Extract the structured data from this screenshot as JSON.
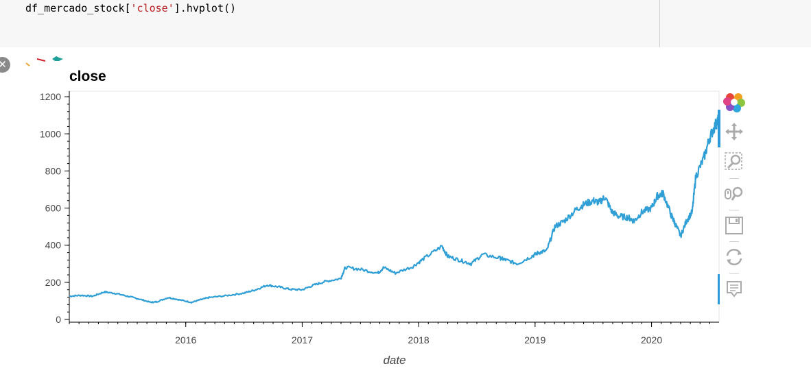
{
  "cell": {
    "code_prefix": "df_mercado_stock[",
    "code_string": "'close'",
    "code_suffix": "].hvplot()"
  },
  "output": {
    "close_button_label": "✕"
  },
  "toolbar": {
    "tools": [
      "bokeh-logo-icon",
      "pan-icon",
      "box-zoom-icon",
      "wheel-zoom-icon",
      "save-icon",
      "reset-icon",
      "hover-icon"
    ],
    "active_color": "#2a9ad8"
  },
  "chart_data": {
    "type": "line",
    "title": "close",
    "xlabel": "date",
    "ylabel": "",
    "color": "#2f9fd6",
    "ylim": [
      0,
      1230
    ],
    "xlim": [
      2015.0,
      2020.58
    ],
    "x_ticks": [
      2016,
      2017,
      2018,
      2019,
      2020
    ],
    "x_tick_labels": [
      "2016",
      "2017",
      "2018",
      "2019",
      "2020"
    ],
    "y_ticks": [
      0,
      200,
      400,
      600,
      800,
      1000,
      1200
    ],
    "y_tick_labels": [
      "0",
      "200",
      "400",
      "600",
      "800",
      "1000",
      "1200"
    ],
    "series": [
      {
        "x": [
          2015.0,
          2015.1,
          2015.2,
          2015.3,
          2015.4,
          2015.5,
          2015.6,
          2015.7,
          2015.75,
          2015.85,
          2015.95,
          2016.05,
          2016.12,
          2016.2,
          2016.35,
          2016.5,
          2016.6,
          2016.7,
          2016.8,
          2016.9,
          2017.0,
          2017.1,
          2017.2,
          2017.33,
          2017.37,
          2017.5,
          2017.65,
          2017.7,
          2017.8,
          2017.95,
          2018.05,
          2018.2,
          2018.25,
          2018.35,
          2018.45,
          2018.55,
          2018.7,
          2018.75,
          2018.85,
          2018.97,
          2019.03,
          2019.1,
          2019.17,
          2019.25,
          2019.35,
          2019.42,
          2019.5,
          2019.55,
          2019.6,
          2019.66,
          2019.72,
          2019.8,
          2019.85,
          2019.92,
          2020.0,
          2020.05,
          2020.1,
          2020.17,
          2020.2,
          2020.25,
          2020.3,
          2020.35,
          2020.38,
          2020.45,
          2020.5,
          2020.55,
          2020.58
        ],
        "y": [
          125,
          130,
          125,
          148,
          140,
          125,
          110,
          92,
          95,
          118,
          105,
          92,
          105,
          118,
          128,
          142,
          160,
          185,
          175,
          162,
          160,
          185,
          205,
          220,
          280,
          270,
          250,
          280,
          250,
          285,
          330,
          395,
          340,
          320,
          300,
          350,
          330,
          320,
          300,
          340,
          360,
          370,
          500,
          530,
          590,
          620,
          640,
          630,
          660,
          580,
          555,
          550,
          530,
          580,
          600,
          665,
          680,
          560,
          520,
          450,
          530,
          580,
          770,
          870,
          980,
          1050,
          1080
        ]
      }
    ]
  }
}
